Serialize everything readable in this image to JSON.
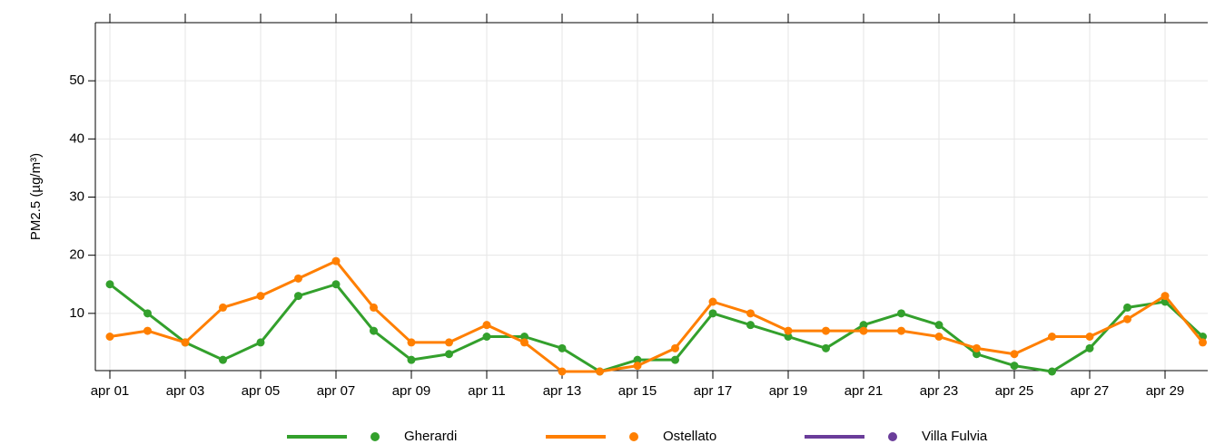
{
  "chart_data": {
    "type": "line",
    "y_label": "PM2.5 (µg/m³)",
    "categories": [
      "apr 01",
      null,
      "apr 03",
      null,
      "apr 05",
      null,
      "apr 07",
      null,
      "apr 09",
      null,
      "apr 11",
      null,
      "apr 13",
      null,
      "apr 15",
      null,
      "apr 17",
      null,
      "apr 19",
      null,
      "apr 21",
      null,
      "apr 23",
      null,
      "apr 25",
      null,
      "apr 27",
      null,
      "apr 29",
      null
    ],
    "series": [
      {
        "name": "Gherardi",
        "color": "#33a02c",
        "values": [
          15,
          10,
          5,
          2,
          5,
          13,
          15,
          7,
          2,
          3,
          6,
          6,
          4,
          0,
          2,
          2,
          10,
          8,
          6,
          4,
          8,
          10,
          8,
          3,
          1,
          0,
          4,
          11,
          12,
          6
        ]
      },
      {
        "name": "Ostellato",
        "color": "#ff7f00",
        "values": [
          6,
          7,
          5,
          11,
          13,
          16,
          19,
          11,
          5,
          5,
          8,
          5,
          0,
          0,
          1,
          4,
          12,
          10,
          7,
          7,
          7,
          7,
          6,
          4,
          3,
          6,
          6,
          9,
          13,
          5
        ]
      },
      {
        "name": "Villa Fulvia",
        "color": "#6a3d9a",
        "values": [
          null,
          null,
          null,
          null,
          null,
          null,
          null,
          null,
          null,
          null,
          null,
          null,
          null,
          null,
          null,
          null,
          null,
          null,
          null,
          null,
          null,
          null,
          null,
          null,
          null,
          null,
          null,
          null,
          null,
          null
        ]
      }
    ],
    "ylim": [
      0,
      60
    ],
    "yticks": [
      10,
      20,
      30,
      40,
      50
    ],
    "grid": true
  }
}
